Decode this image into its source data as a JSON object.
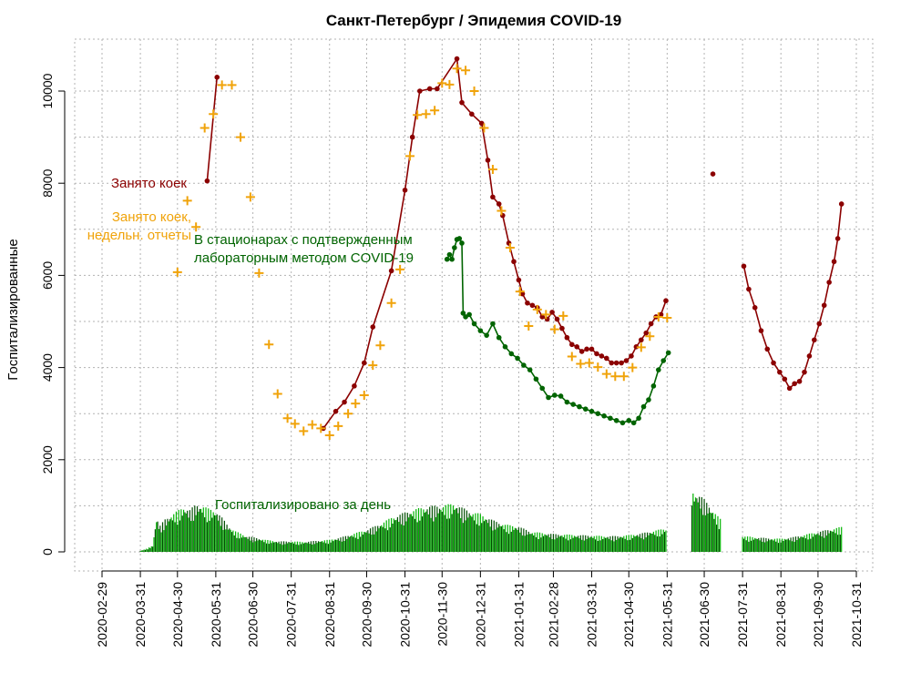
{
  "chart_data": {
    "type": "line",
    "title": "Санкт-Петербург / Эпидемия COVID-19",
    "xlabel": "",
    "ylabel": "Госпитализированные",
    "x_axis_type": "date",
    "xlim": [
      "2020-02-29",
      "2021-10-31"
    ],
    "ylim": [
      0,
      10800
    ],
    "x_ticks": [
      "2020-02-29",
      "2020-03-31",
      "2020-04-30",
      "2020-05-31",
      "2020-06-30",
      "2020-07-31",
      "2020-08-31",
      "2020-09-30",
      "2020-10-31",
      "2020-11-30",
      "2020-12-31",
      "2021-01-31",
      "2021-02-28",
      "2021-03-31",
      "2021-04-30",
      "2021-05-31",
      "2021-06-30",
      "2021-07-31",
      "2021-08-31",
      "2021-09-30",
      "2021-10-31"
    ],
    "y_ticks": [
      0,
      2000,
      4000,
      6000,
      8000,
      10000
    ],
    "grid": true,
    "colors": {
      "occupied": "#8b0000",
      "weekly": "#f0a30a",
      "lab": "#006400",
      "bars": "#00b300",
      "bars_dark": "#004d00"
    },
    "annotations": {
      "occupied": "Занято коек",
      "weekly_line1": "Занято коек,",
      "weekly_line2": "недельн. отчеты",
      "lab_line1": "В стационарах с подтвержденным",
      "lab_line2": "лабораторным методом COVID-19",
      "bars": "Госпитализировано за день"
    },
    "series": [
      {
        "name": "Занято коек",
        "style": "points+line",
        "x": [
          "2020-05-24",
          "2020-06-01",
          "2020-08-26",
          "2020-09-05",
          "2020-09-12",
          "2020-09-20",
          "2020-09-28",
          "2020-10-05",
          "2020-10-20",
          "2020-10-31",
          "2020-11-06",
          "2020-11-12",
          "2020-11-20",
          "2020-11-26",
          "2020-12-12",
          "2020-12-16",
          "2020-12-24",
          "2021-01-01",
          "2021-01-06",
          "2021-01-10",
          "2021-01-15",
          "2021-01-18",
          "2021-01-23",
          "2021-01-27",
          "2021-01-31",
          "2021-02-03",
          "2021-02-07",
          "2021-02-11",
          "2021-02-15",
          "2021-02-19",
          "2021-02-23",
          "2021-02-27",
          "2021-03-03",
          "2021-03-07",
          "2021-03-11",
          "2021-03-15",
          "2021-03-19",
          "2021-03-23",
          "2021-03-27",
          "2021-03-31",
          "2021-04-04",
          "2021-04-08",
          "2021-04-12",
          "2021-04-16",
          "2021-04-20",
          "2021-04-24",
          "2021-04-28",
          "2021-05-02",
          "2021-05-06",
          "2021-05-10",
          "2021-05-14",
          "2021-05-18",
          "2021-05-22",
          "2021-05-26",
          "2021-05-30",
          "2021-07-07",
          "2021-08-01",
          "2021-08-05",
          "2021-08-10",
          "2021-08-15",
          "2021-08-20",
          "2021-08-25",
          "2021-08-30",
          "2021-09-03",
          "2021-09-07",
          "2021-09-11",
          "2021-09-15",
          "2021-09-19",
          "2021-09-23",
          "2021-09-27",
          "2021-10-01",
          "2021-10-05",
          "2021-10-09",
          "2021-10-13",
          "2021-10-16",
          "2021-10-19"
        ],
        "y": [
          8050,
          10300,
          2680,
          3050,
          3250,
          3600,
          4100,
          4880,
          6100,
          7850,
          9000,
          10000,
          10050,
          10050,
          10700,
          9750,
          9500,
          9300,
          8500,
          7700,
          7550,
          7300,
          6700,
          6300,
          5900,
          5600,
          5400,
          5350,
          5300,
          5100,
          5050,
          5200,
          5050,
          4850,
          4650,
          4500,
          4450,
          4350,
          4400,
          4400,
          4300,
          4250,
          4200,
          4100,
          4100,
          4100,
          4150,
          4250,
          4450,
          4600,
          4750,
          4950,
          5100,
          5150,
          5450,
          8200,
          6200,
          5700,
          5300,
          4800,
          4400,
          4100,
          3900,
          3750,
          3550,
          3650,
          3700,
          3900,
          4250,
          4600,
          4950,
          5350,
          5850,
          6300,
          6800,
          7550
        ]
      },
      {
        "name": "Занято коек, недельн. отчеты",
        "style": "plus",
        "x": [
          "2020-04-30",
          "2020-05-08",
          "2020-05-15",
          "2020-05-22",
          "2020-05-29",
          "2020-06-05",
          "2020-06-13",
          "2020-06-20",
          "2020-06-28",
          "2020-07-05",
          "2020-07-13",
          "2020-07-20",
          "2020-07-28",
          "2020-08-03",
          "2020-08-10",
          "2020-08-17",
          "2020-08-24",
          "2020-08-31",
          "2020-09-07",
          "2020-09-15",
          "2020-09-21",
          "2020-09-28",
          "2020-10-05",
          "2020-10-11",
          "2020-10-20",
          "2020-10-27",
          "2020-11-04",
          "2020-11-10",
          "2020-11-17",
          "2020-11-24",
          "2020-11-30",
          "2020-12-06",
          "2020-12-12",
          "2020-12-19",
          "2020-12-26",
          "2021-01-03",
          "2021-01-10",
          "2021-01-17",
          "2021-01-24",
          "2021-02-01",
          "2021-02-08",
          "2021-02-15",
          "2021-02-22",
          "2021-03-01",
          "2021-03-08",
          "2021-03-15",
          "2021-03-22",
          "2021-03-29",
          "2021-04-05",
          "2021-04-12",
          "2021-04-19",
          "2021-04-26",
          "2021-05-03",
          "2021-05-10",
          "2021-05-17",
          "2021-05-24",
          "2021-05-31"
        ],
        "y": [
          6070,
          7620,
          7050,
          9200,
          9500,
          10130,
          10130,
          9000,
          7700,
          6050,
          4500,
          3430,
          2900,
          2780,
          2620,
          2760,
          2680,
          2530,
          2730,
          3000,
          3220,
          3400,
          4050,
          4480,
          5400,
          6130,
          8590,
          9480,
          9500,
          9580,
          10170,
          10140,
          10490,
          10450,
          10000,
          9200,
          8300,
          7400,
          6600,
          5650,
          4900,
          5260,
          5150,
          4830,
          5120,
          4240,
          4080,
          4100,
          4010,
          3860,
          3810,
          3810,
          4000,
          4440,
          4680,
          5100,
          5080
        ]
      },
      {
        "name": "В стационарах с подтвержденным лабораторным методом COVID-19",
        "style": "points+line",
        "x": [
          "2020-12-04",
          "2020-12-06",
          "2020-12-08",
          "2020-12-10",
          "2020-12-12",
          "2020-12-14",
          "2020-12-16",
          "2020-12-17",
          "2020-12-19",
          "2020-12-22",
          "2020-12-26",
          "2020-12-31",
          "2021-01-05",
          "2021-01-10",
          "2021-01-15",
          "2021-01-20",
          "2021-01-25",
          "2021-01-30",
          "2021-02-04",
          "2021-02-09",
          "2021-02-14",
          "2021-02-19",
          "2021-02-24",
          "2021-03-01",
          "2021-03-06",
          "2021-03-11",
          "2021-03-16",
          "2021-03-21",
          "2021-03-26",
          "2021-03-31",
          "2021-04-05",
          "2021-04-10",
          "2021-04-15",
          "2021-04-20",
          "2021-04-25",
          "2021-04-30",
          "2021-05-04",
          "2021-05-08",
          "2021-05-12",
          "2021-05-16",
          "2021-05-20",
          "2021-05-24",
          "2021-05-28",
          "2021-06-01"
        ],
        "y": [
          6350,
          6450,
          6350,
          6600,
          6780,
          6800,
          6700,
          5180,
          5100,
          5150,
          4950,
          4800,
          4700,
          4950,
          4650,
          4450,
          4300,
          4200,
          4050,
          3950,
          3750,
          3550,
          3350,
          3400,
          3380,
          3250,
          3200,
          3150,
          3100,
          3050,
          3000,
          2950,
          2900,
          2850,
          2800,
          2850,
          2800,
          2900,
          3150,
          3300,
          3600,
          3950,
          4150,
          4320
        ]
      }
    ],
    "bars": {
      "name": "Госпитализировано за день",
      "segments": [
        {
          "x": [
            "2020-03-31",
            "2020-04-05",
            "2020-04-10",
            "2020-04-13",
            "2020-04-16",
            "2020-04-20",
            "2020-04-25",
            "2020-04-30",
            "2020-05-05",
            "2020-05-10",
            "2020-05-15",
            "2020-05-20",
            "2020-05-25",
            "2020-05-31",
            "2020-06-05",
            "2020-06-10",
            "2020-06-15",
            "2020-06-20",
            "2020-06-25",
            "2020-06-30",
            "2020-07-10",
            "2020-07-20",
            "2020-07-31",
            "2020-08-10",
            "2020-08-20",
            "2020-08-31",
            "2020-09-10",
            "2020-09-20",
            "2020-09-30",
            "2020-10-10",
            "2020-10-20",
            "2020-10-31",
            "2020-11-10",
            "2020-11-20",
            "2020-11-30",
            "2020-12-05",
            "2020-12-10",
            "2020-12-15",
            "2020-12-20",
            "2020-12-25",
            "2020-12-31",
            "2021-01-10",
            "2021-01-20",
            "2021-01-31",
            "2021-02-10",
            "2021-02-20",
            "2021-02-28",
            "2021-03-10",
            "2021-03-20",
            "2021-03-31",
            "2021-04-10",
            "2021-04-20",
            "2021-04-30",
            "2021-05-10",
            "2021-05-20",
            "2021-05-31"
          ],
          "y": [
            20,
            60,
            120,
            650,
            500,
            620,
            700,
            780,
            850,
            800,
            900,
            880,
            820,
            780,
            650,
            500,
            400,
            350,
            300,
            280,
            230,
            200,
            200,
            190,
            210,
            230,
            280,
            350,
            420,
            520,
            650,
            750,
            820,
            870,
            880,
            900,
            920,
            850,
            800,
            750,
            720,
            600,
            520,
            480,
            380,
            360,
            340,
            330,
            320,
            310,
            300,
            300,
            320,
            350,
            400,
            450
          ]
        },
        {
          "x": [
            "2021-06-20",
            "2021-06-25",
            "2021-06-30",
            "2021-07-05",
            "2021-07-10",
            "2021-07-14"
          ],
          "y": [
            1150,
            1100,
            1000,
            850,
            700,
            600
          ]
        },
        {
          "x": [
            "2021-07-31",
            "2021-08-10",
            "2021-08-20",
            "2021-08-31",
            "2021-09-10",
            "2021-09-20",
            "2021-09-30",
            "2021-10-10",
            "2021-10-20"
          ],
          "y": [
            300,
            280,
            260,
            250,
            280,
            330,
            380,
            430,
            480
          ]
        }
      ]
    }
  }
}
